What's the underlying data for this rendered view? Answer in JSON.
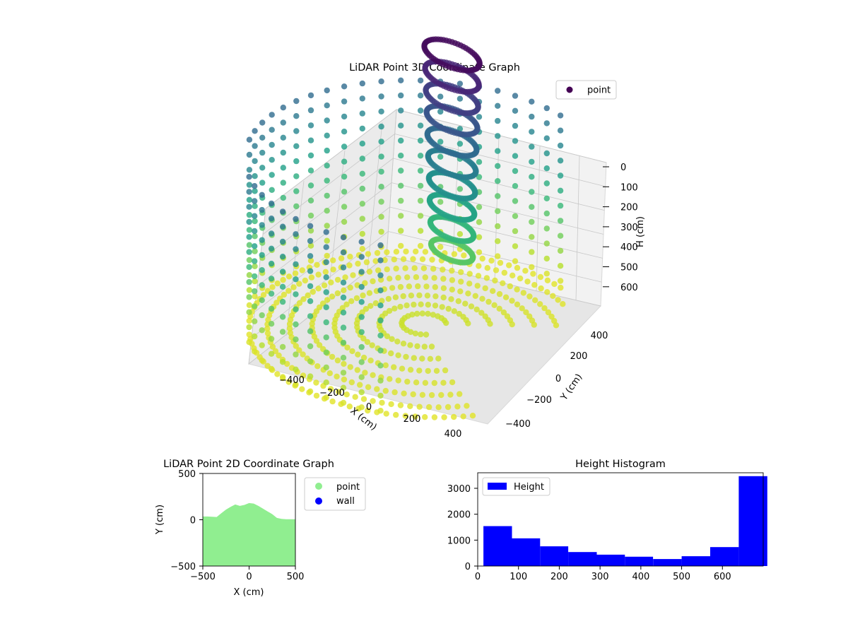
{
  "chart_data": [
    {
      "type": "scatter3d",
      "title": "LiDAR Point 3D Coordinate Graph",
      "xlabel": "X (cm)",
      "ylabel": "Y (cm)",
      "zlabel": "H (cm)",
      "x_ticks": [
        "−400",
        "−200",
        "0",
        "200",
        "400"
      ],
      "y_ticks": [
        "−400",
        "−200",
        "0",
        "200",
        "400"
      ],
      "z_ticks": [
        "0",
        "100",
        "200",
        "300",
        "400",
        "500",
        "600"
      ],
      "zlim": [
        700,
        0
      ],
      "colormap": "viridis",
      "legend": {
        "labels": [
          "point"
        ],
        "loc": "upper right",
        "marker_color": "#440154"
      },
      "grid": true,
      "points": {
        "description_rings": "points are sampled on a cylindrical room: floor rings + wall columns + central dome",
        "ring_radii": [
          60,
          120,
          180,
          240,
          300,
          360,
          420,
          470
        ],
        "wall_radius": 480
      }
    },
    {
      "type": "area",
      "title": "LiDAR Point 2D Coordinate Graph",
      "xlabel": "X (cm)",
      "ylabel": "Y (cm)",
      "xlim": [
        -500,
        500
      ],
      "ylim": [
        -500,
        500
      ],
      "x_ticks": [
        "−500",
        "0",
        "500"
      ],
      "y_ticks": [
        "−500",
        "0",
        "500"
      ],
      "x": [
        -500,
        -450,
        -350,
        -300,
        -250,
        -200,
        -150,
        -100,
        -50,
        0,
        50,
        100,
        150,
        200,
        250,
        300,
        350,
        400,
        450,
        500
      ],
      "y_top": [
        35,
        35,
        30,
        70,
        110,
        140,
        165,
        150,
        160,
        180,
        175,
        150,
        120,
        90,
        60,
        20,
        10,
        5,
        5,
        5
      ],
      "y_bottom": -500,
      "legend": {
        "loc": "upper left, outside right",
        "labels": [
          "point",
          "wall"
        ],
        "colors": [
          "#90ee90",
          "#0000ff"
        ]
      }
    },
    {
      "type": "bar",
      "title": "Height Histogram",
      "xlim": [
        0,
        700
      ],
      "ylim": [
        0,
        3600
      ],
      "x_ticks": [
        "0",
        "100",
        "200",
        "300",
        "400",
        "500",
        "600"
      ],
      "y_ticks": [
        "0",
        "1000",
        "2000",
        "3000"
      ],
      "bin_edges": [
        14,
        84,
        153,
        222,
        292,
        361,
        430,
        500,
        570,
        640,
        710
      ],
      "values": [
        1540,
        1070,
        760,
        540,
        440,
        360,
        270,
        380,
        730,
        3470
      ],
      "color": "#0000ff",
      "legend": {
        "labels": [
          "Height"
        ],
        "loc": "upper left"
      }
    }
  ]
}
